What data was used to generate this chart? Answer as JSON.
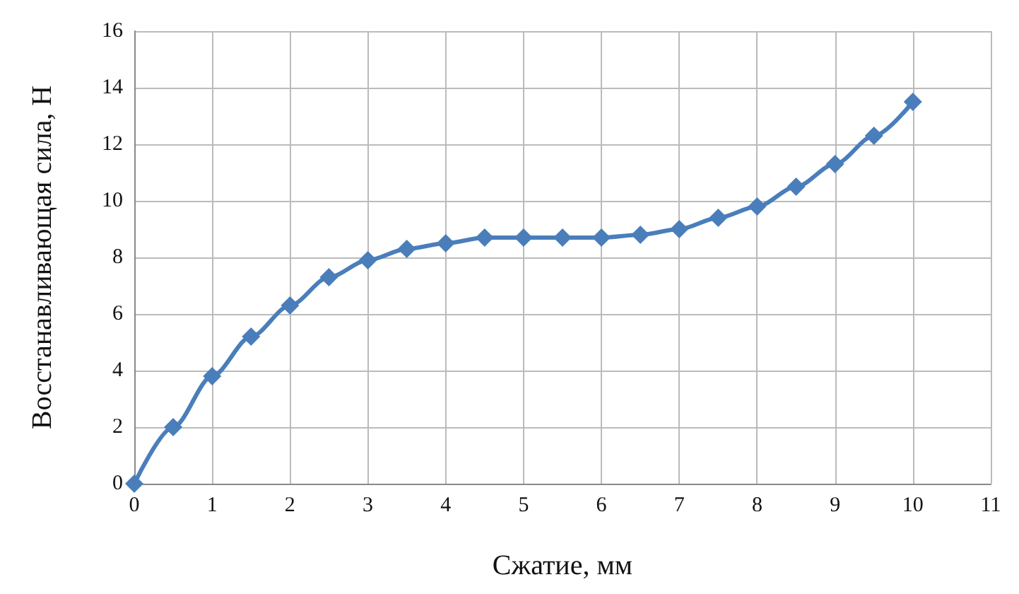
{
  "chart_data": {
    "type": "line",
    "xlabel": "Сжатие, мм",
    "ylabel": "Восстанавливающая сила, Н",
    "x": [
      0,
      0.5,
      1,
      1.5,
      2,
      2.5,
      3,
      3.5,
      4,
      4.5,
      5,
      5.5,
      6,
      6.5,
      7,
      7.5,
      8,
      8.5,
      9,
      9.5,
      10
    ],
    "series": [
      {
        "color": "#4a7ebb",
        "values": [
          0,
          2.0,
          3.8,
          5.2,
          6.3,
          7.3,
          7.9,
          8.3,
          8.5,
          8.7,
          8.7,
          8.7,
          8.7,
          8.8,
          9.0,
          9.4,
          9.8,
          10.5,
          11.3,
          12.3,
          13.5
        ]
      }
    ],
    "xlim": [
      0,
      11
    ],
    "xticks": [
      0,
      1,
      2,
      3,
      4,
      5,
      6,
      7,
      8,
      9,
      10,
      11
    ],
    "ylim": [
      0,
      16
    ],
    "yticks": [
      0,
      2,
      4,
      6,
      8,
      10,
      12,
      14,
      16
    ],
    "grid": true,
    "marker": "diamond",
    "line_style": "solid"
  }
}
